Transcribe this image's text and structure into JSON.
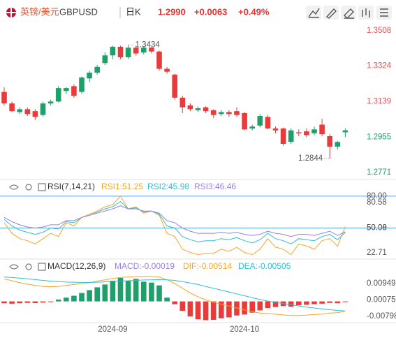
{
  "header": {
    "name": "英镑/美元",
    "symbol": "GBPUSD",
    "period": "日K",
    "price": "1.2990",
    "change": "+0.0063",
    "change_pct": "+0.49%"
  },
  "chart_data": [
    {
      "type": "candlestick",
      "categories": [
        null,
        null,
        null,
        null,
        null,
        null,
        null,
        null,
        null,
        null,
        null,
        null,
        null,
        null,
        "2024-09",
        null,
        null,
        null,
        null,
        null,
        null,
        null,
        null,
        null,
        null,
        null,
        null,
        null,
        null,
        null,
        null,
        "2024-10",
        null,
        null,
        null,
        null,
        null,
        null,
        null,
        null,
        null,
        null,
        null,
        null,
        null
      ],
      "open": [
        1.319,
        1.313,
        1.3085,
        1.31,
        1.309,
        1.307,
        1.313,
        1.314,
        1.3195,
        1.322,
        1.319,
        1.326,
        1.329,
        1.334,
        1.338,
        1.3425,
        1.337,
        1.342,
        1.3395,
        1.342,
        1.34,
        1.331,
        1.328,
        1.316,
        1.312,
        1.3095,
        1.311,
        1.3095,
        1.3075,
        1.3085,
        1.309,
        1.308,
        1.3,
        1.3015,
        1.306,
        1.3,
        1.3,
        1.293,
        1.298,
        1.2985,
        1.2975,
        1.302,
        1.296,
        1.2905,
        1.298
      ],
      "high": [
        1.3215,
        1.314,
        1.311,
        1.311,
        1.31,
        1.314,
        1.315,
        1.322,
        1.3215,
        1.323,
        1.327,
        1.33,
        1.333,
        1.3395,
        1.343,
        1.343,
        1.3434,
        1.343,
        1.3428,
        1.3425,
        1.3405,
        1.332,
        1.3285,
        1.317,
        1.313,
        1.3115,
        1.3115,
        1.31,
        1.3095,
        1.3095,
        1.311,
        1.3085,
        1.302,
        1.3075,
        1.307,
        1.301,
        1.3005,
        1.3,
        1.2995,
        1.3,
        1.301,
        1.305,
        1.297,
        1.2935,
        1.3
      ],
      "low": [
        1.312,
        1.3085,
        1.3075,
        1.3065,
        1.3045,
        1.306,
        1.312,
        1.3135,
        1.318,
        1.316,
        1.318,
        1.324,
        1.328,
        1.333,
        1.336,
        1.336,
        1.336,
        1.338,
        1.3385,
        1.339,
        1.33,
        1.3285,
        1.315,
        1.308,
        1.309,
        1.3085,
        1.308,
        1.3055,
        1.3065,
        1.306,
        1.306,
        1.299,
        1.299,
        1.3005,
        1.2995,
        1.2975,
        1.291,
        1.292,
        1.296,
        1.2955,
        1.2965,
        1.296,
        1.2844,
        1.289,
        1.2955
      ],
      "close": [
        1.313,
        1.309,
        1.31,
        1.3075,
        1.306,
        1.313,
        1.314,
        1.321,
        1.321,
        1.317,
        1.3265,
        1.329,
        1.332,
        1.338,
        1.3425,
        1.337,
        1.342,
        1.339,
        1.342,
        1.34,
        1.331,
        1.3295,
        1.316,
        1.311,
        1.31,
        1.3105,
        1.309,
        1.307,
        1.3085,
        1.3075,
        1.307,
        1.2995,
        1.301,
        1.3065,
        1.3,
        1.299,
        1.292,
        1.299,
        1.2975,
        1.2965,
        1.2995,
        1.297,
        1.2905,
        1.293,
        1.299
      ],
      "up_color": "#1fa06b",
      "down_color": "#ea3b3b",
      "ylim": [
        1.2742,
        1.3559
      ],
      "yticks": [
        1.3508,
        1.3324,
        1.3139,
        1.2955,
        1.2771
      ]
    },
    {
      "type": "line",
      "title": "RSI(7,14,21)",
      "series": [
        {
          "name": "RSI1:51.25",
          "color": "#f5a623",
          "values": [
            55,
            45,
            40,
            38,
            35,
            40,
            45,
            42,
            55,
            52,
            60,
            63,
            66,
            70,
            72,
            80,
            68,
            70,
            64,
            66,
            62,
            45,
            42,
            30,
            27,
            25,
            26,
            26,
            30,
            28,
            32,
            27,
            25,
            30,
            40,
            32,
            30,
            25,
            35,
            33,
            30,
            38,
            40,
            33,
            51.25
          ]
        },
        {
          "name": "RSI2:45.98",
          "color": "#2ebfcf",
          "values": [
            58,
            52,
            48,
            46,
            44,
            46,
            50,
            49,
            56,
            55,
            60,
            62,
            65,
            68,
            70,
            75,
            68,
            69,
            65,
            66,
            63,
            52,
            50,
            42,
            39,
            37,
            38,
            38,
            40,
            39,
            41,
            38,
            36,
            39,
            45,
            40,
            38,
            35,
            40,
            39,
            38,
            42,
            44,
            39,
            45.98
          ]
        },
        {
          "name": "RSI3:46.46",
          "color": "#9b7fe0",
          "values": [
            60,
            56,
            53,
            51,
            50,
            51,
            53,
            53,
            57,
            57,
            60,
            62,
            64,
            66,
            68,
            71,
            68,
            68,
            66,
            66,
            64,
            57,
            55,
            50,
            47,
            45,
            45,
            45,
            46,
            45,
            46,
            44,
            43,
            44,
            47,
            45,
            44,
            42,
            44,
            44,
            43,
            45,
            47,
            43,
            46.46
          ]
        }
      ],
      "reference_lines": [
        {
          "value": 80,
          "label": "80.00"
        },
        {
          "value": 50,
          "label": "50.00"
        }
      ],
      "ref_color": "#5aa0e6",
      "ylim": [
        22.71,
        80.58
      ],
      "yticks": [
        80.58,
        50.08,
        22.71
      ]
    },
    {
      "type": "macd",
      "title": "MACD(12,26,9)",
      "series": [
        {
          "name": "MACD:-0.00019",
          "color": "#9b7fe0",
          "up_color": "#1fa06b",
          "down_color": "#ea3b3b",
          "values": [
            -0.001,
            -0.0012,
            -0.001,
            -0.0008,
            -0.0009,
            -0.0006,
            -0.0003,
            0.001,
            0.002,
            0.003,
            0.0045,
            0.006,
            0.0075,
            0.009,
            0.011,
            0.0125,
            0.011,
            0.012,
            0.0105,
            0.01,
            0.0085,
            0.002,
            -0.0015,
            -0.005,
            -0.008,
            -0.0095,
            -0.01,
            -0.0098,
            -0.009,
            -0.0085,
            -0.0075,
            -0.007,
            -0.006,
            -0.0048,
            -0.0035,
            -0.003,
            -0.0025,
            -0.0028,
            -0.002,
            -0.0018,
            -0.0015,
            -0.0012,
            -0.0008,
            -0.001,
            -0.00019
          ]
        },
        {
          "name": "DIF:-0.00514",
          "color": "#f5a623",
          "values": [
            0.012,
            0.011,
            0.01,
            0.0092,
            0.0085,
            0.008,
            0.0078,
            0.008,
            0.0085,
            0.009,
            0.0095,
            0.01,
            0.0108,
            0.0115,
            0.0122,
            0.0128,
            0.013,
            0.0132,
            0.0133,
            0.0133,
            0.013,
            0.0115,
            0.0095,
            0.007,
            0.0045,
            0.0025,
            0.0008,
            -0.0005,
            -0.0015,
            -0.0025,
            -0.0035,
            -0.0045,
            -0.0055,
            -0.0062,
            -0.0065,
            -0.0068,
            -0.0072,
            -0.0075,
            -0.0075,
            -0.0073,
            -0.007,
            -0.0068,
            -0.0062,
            -0.006,
            -0.00514
          ]
        },
        {
          "name": "DEA:-0.00505",
          "color": "#2ebfcf",
          "values": [
            0.013,
            0.0127,
            0.0124,
            0.012,
            0.0116,
            0.0112,
            0.0108,
            0.0105,
            0.0103,
            0.0102,
            0.0101,
            0.0101,
            0.0102,
            0.0104,
            0.0106,
            0.0108,
            0.011,
            0.0112,
            0.0114,
            0.0115,
            0.0116,
            0.0115,
            0.0112,
            0.0105,
            0.0098,
            0.009,
            0.008,
            0.007,
            0.006,
            0.005,
            0.004,
            0.003,
            0.002,
            0.001,
            0.0002,
            -0.0005,
            -0.0012,
            -0.0018,
            -0.0024,
            -0.003,
            -0.0035,
            -0.004,
            -0.0044,
            -0.0048,
            -0.00505
          ]
        }
      ],
      "ylim": [
        -0.0113,
        0.0136
      ],
      "yticks": [
        0.00949,
        0.00075,
        -0.00798
      ]
    }
  ]
}
